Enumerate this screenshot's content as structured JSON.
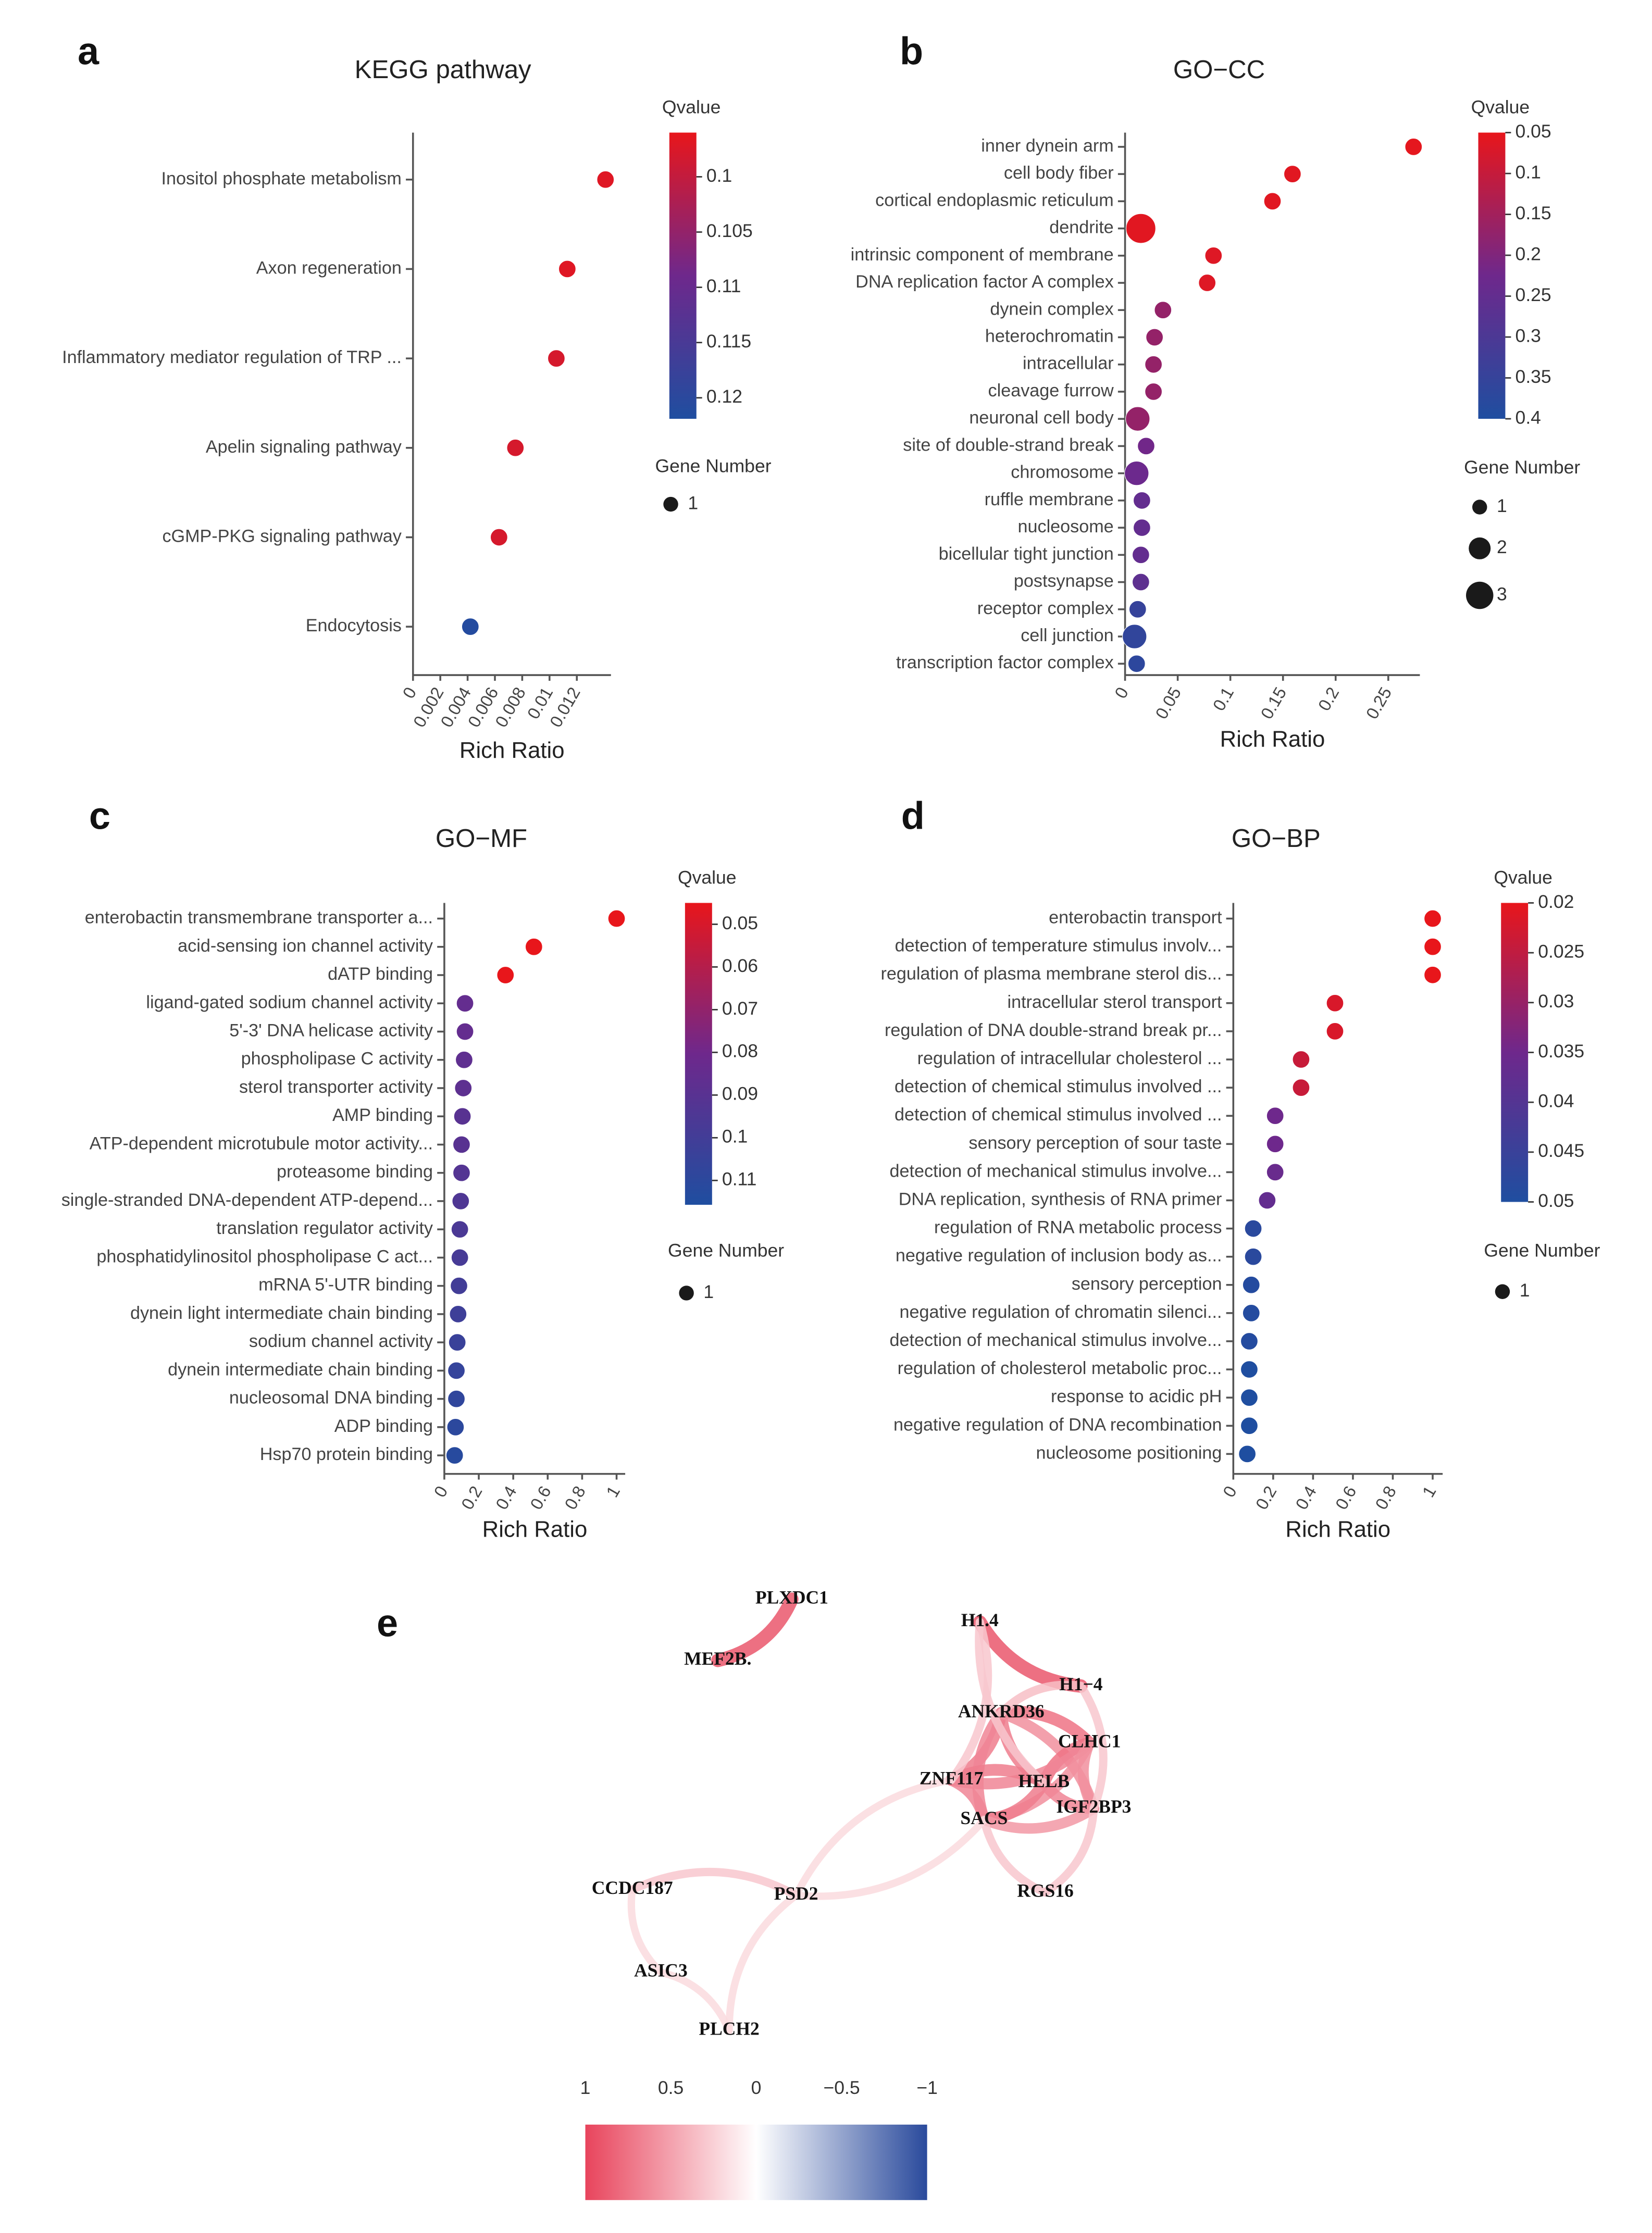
{
  "chart_data": [
    {
      "panel": "a",
      "type": "bubble",
      "title": "KEGG pathway",
      "xlabel": "Rich Ratio",
      "categories": [
        "Inositol phosphate metabolism",
        "Axon regeneration",
        "Inflammatory mediator regulation of TRP ...",
        "Apelin signaling pathway",
        "cGMP-PKG signaling pathway",
        "Endocytosis"
      ],
      "values": [
        0.0141,
        0.0113,
        0.0105,
        0.0075,
        0.0063,
        0.0042
      ],
      "qvalues": [
        0.097,
        0.097,
        0.098,
        0.098,
        0.098,
        0.121
      ],
      "gene_numbers": [
        1,
        1,
        1,
        1,
        1,
        1
      ],
      "xlim": [
        0,
        0.0145
      ],
      "xticks": [
        0,
        0.002,
        0.004,
        0.006,
        0.008,
        0.01,
        0.012
      ],
      "colorbar": {
        "title": "Qvalue",
        "lim": [
          0.096,
          0.1219
        ],
        "ticks": [
          0.1,
          0.105,
          0.11,
          0.115,
          0.12
        ],
        "colors": [
          "#e8161b",
          "#6e288c",
          "#1f4ea0"
        ]
      },
      "size_legend": {
        "title": "Gene Number",
        "values": [
          1
        ]
      }
    },
    {
      "panel": "b",
      "type": "bubble",
      "title": "GO−CC",
      "xlabel": "Rich Ratio",
      "categories": [
        "inner dynein arm",
        "cell body fiber",
        "cortical endoplasmic reticulum",
        "dendrite",
        "intrinsic component of membrane",
        "DNA replication factor A complex",
        "dynein complex",
        "heterochromatin",
        "intracellular",
        "cleavage furrow",
        "neuronal cell body",
        "site of double-strand break",
        "chromosome",
        "ruffle membrane",
        "nucleosome",
        "bicellular tight junction",
        "postsynapse",
        "receptor complex",
        "cell junction",
        "transcription factor complex"
      ],
      "values": [
        0.274,
        0.159,
        0.14,
        0.015,
        0.084,
        0.078,
        0.036,
        0.028,
        0.027,
        0.027,
        0.012,
        0.02,
        0.011,
        0.016,
        0.016,
        0.015,
        0.015,
        0.012,
        0.009,
        0.011
      ],
      "qvalues": [
        0.055,
        0.06,
        0.06,
        0.06,
        0.065,
        0.065,
        0.17,
        0.17,
        0.17,
        0.17,
        0.17,
        0.22,
        0.23,
        0.25,
        0.25,
        0.25,
        0.26,
        0.35,
        0.36,
        0.37
      ],
      "gene_numbers": [
        1,
        1,
        1,
        3,
        1,
        1,
        1,
        1,
        1,
        1,
        2,
        1,
        2,
        1,
        1,
        1,
        1,
        1,
        2,
        1
      ],
      "xlim": [
        0,
        0.28
      ],
      "xticks": [
        0,
        0.05,
        0.1,
        0.15,
        0.2,
        0.25
      ],
      "colorbar": {
        "title": "Qvalue",
        "lim": [
          0.05,
          0.4
        ],
        "ticks": [
          0.05,
          0.1,
          0.15,
          0.2,
          0.25,
          0.3,
          0.35,
          0.4
        ],
        "colors": [
          "#e8161b",
          "#6e288c",
          "#1f4ea0"
        ]
      },
      "size_legend": {
        "title": "Gene Number",
        "values": [
          1,
          2,
          3
        ]
      }
    },
    {
      "panel": "c",
      "type": "bubble",
      "title": "GO−MF",
      "xlabel": "Rich Ratio",
      "categories": [
        "enterobactin transmembrane transporter a...",
        "acid-sensing ion channel activity",
        "dATP binding",
        "ligand-gated sodium channel activity",
        "5'-3' DNA helicase activity",
        "phospholipase C activity",
        "sterol transporter activity",
        "AMP binding",
        "ATP-dependent microtubule motor activity...",
        "proteasome binding",
        "single-stranded DNA-dependent ATP-depend...",
        "translation regulator activity",
        "phosphatidylinositol phospholipase C act...",
        "mRNA 5'-UTR binding",
        "dynein light intermediate chain binding",
        "sodium channel activity",
        "dynein intermediate chain binding",
        "nucleosomal DNA binding",
        "ADP binding",
        "Hsp70 protein binding"
      ],
      "values": [
        1,
        0.52,
        0.355,
        0.12,
        0.12,
        0.115,
        0.11,
        0.105,
        0.1,
        0.1,
        0.095,
        0.09,
        0.09,
        0.085,
        0.08,
        0.075,
        0.07,
        0.07,
        0.065,
        0.06
      ],
      "qvalues": [
        0.045,
        0.045,
        0.045,
        0.085,
        0.085,
        0.087,
        0.088,
        0.09,
        0.09,
        0.092,
        0.094,
        0.096,
        0.098,
        0.1,
        0.102,
        0.104,
        0.106,
        0.108,
        0.11,
        0.112
      ],
      "gene_numbers": [
        1,
        1,
        1,
        1,
        1,
        1,
        1,
        1,
        1,
        1,
        1,
        1,
        1,
        1,
        1,
        1,
        1,
        1,
        1,
        1
      ],
      "xlim": [
        0,
        1.05
      ],
      "xticks": [
        0,
        0.2,
        0.4,
        0.6,
        0.8,
        1
      ],
      "colorbar": {
        "title": "Qvalue",
        "lim": [
          0.045,
          0.1157
        ],
        "ticks": [
          0.05,
          0.06,
          0.07,
          0.08,
          0.09,
          0.1,
          0.11
        ],
        "colors": [
          "#e8161b",
          "#6e288c",
          "#1f4ea0"
        ]
      },
      "size_legend": {
        "title": "Gene Number",
        "values": [
          1
        ]
      }
    },
    {
      "panel": "d",
      "type": "bubble",
      "title": "GO−BP",
      "xlabel": "Rich Ratio",
      "categories": [
        "enterobactin transport",
        "detection of temperature stimulus involv...",
        "regulation of plasma membrane sterol dis...",
        "intracellular sterol transport",
        "regulation of DNA double-strand break pr...",
        "regulation of intracellular cholesterol ...",
        "detection of chemical stimulus involved ...",
        "detection of chemical stimulus involved ...",
        "sensory perception of sour taste",
        "detection of mechanical stimulus involve...",
        "DNA replication, synthesis of RNA primer",
        "regulation of RNA metabolic process",
        "negative regulation of inclusion body as...",
        "sensory perception",
        "negative regulation of chromatin silenci...",
        "detection of mechanical stimulus involve...",
        "regulation of cholesterol metabolic proc...",
        "response to acidic pH",
        "negative regulation of DNA recombination",
        "nucleosome positioning"
      ],
      "values": [
        1,
        1,
        1,
        0.51,
        0.51,
        0.34,
        0.34,
        0.21,
        0.21,
        0.21,
        0.17,
        0.1,
        0.1,
        0.09,
        0.09,
        0.08,
        0.08,
        0.08,
        0.08,
        0.07
      ],
      "qvalues": [
        0.02,
        0.02,
        0.02,
        0.022,
        0.022,
        0.024,
        0.024,
        0.035,
        0.035,
        0.036,
        0.037,
        0.048,
        0.048,
        0.049,
        0.049,
        0.049,
        0.05,
        0.05,
        0.05,
        0.05
      ],
      "gene_numbers": [
        1,
        1,
        1,
        1,
        1,
        1,
        1,
        1,
        1,
        1,
        1,
        1,
        1,
        1,
        1,
        1,
        1,
        1,
        1,
        1
      ],
      "xlim": [
        0,
        1.05
      ],
      "xticks": [
        0,
        0.2,
        0.4,
        0.6,
        0.8,
        1
      ],
      "colorbar": {
        "title": "Qvalue",
        "lim": [
          0.02,
          0.05
        ],
        "ticks": [
          0.02,
          0.025,
          0.03,
          0.035,
          0.04,
          0.045,
          0.05
        ],
        "colors": [
          "#e8161b",
          "#6e288c",
          "#1f4ea0"
        ]
      },
      "size_legend": {
        "title": "Gene Number",
        "values": [
          1
        ]
      }
    }
  ],
  "network": {
    "panel": "e",
    "nodes": [
      "PLXDC1",
      "MEF2B.",
      "H1.4",
      "H1−4",
      "ANKRD36",
      "CLHC1",
      "ZNF117",
      "HELB",
      "IGF2BP3",
      "SACS",
      "RGS16",
      "CCDC187",
      "PSD2",
      "ASIC3",
      "PLCH2"
    ],
    "edges": [
      {
        "source": "PLXDC1",
        "target": "MEF2B.",
        "weight": 0.9
      },
      {
        "source": "H1.4",
        "target": "H1−4",
        "weight": 0.9
      },
      {
        "source": "ANKRD36",
        "target": "CLHC1",
        "weight": 0.75
      },
      {
        "source": "ANKRD36",
        "target": "HELB",
        "weight": 0.7
      },
      {
        "source": "ANKRD36",
        "target": "ZNF117",
        "weight": 0.7
      },
      {
        "source": "ANKRD36",
        "target": "SACS",
        "weight": 0.65
      },
      {
        "source": "ANKRD36",
        "target": "IGF2BP3",
        "weight": 0.6
      },
      {
        "source": "CLHC1",
        "target": "HELB",
        "weight": 0.75
      },
      {
        "source": "CLHC1",
        "target": "ZNF117",
        "weight": 0.65
      },
      {
        "source": "CLHC1",
        "target": "IGF2BP3",
        "weight": 0.6
      },
      {
        "source": "CLHC1",
        "target": "SACS",
        "weight": 0.6
      },
      {
        "source": "HELB",
        "target": "ZNF117",
        "weight": 0.7
      },
      {
        "source": "HELB",
        "target": "SACS",
        "weight": 0.7
      },
      {
        "source": "HELB",
        "target": "IGF2BP3",
        "weight": 0.65
      },
      {
        "source": "ZNF117",
        "target": "SACS",
        "weight": 0.65
      },
      {
        "source": "SACS",
        "target": "IGF2BP3",
        "weight": 0.55
      },
      {
        "source": "H1.4",
        "target": "ZNF117",
        "weight": 0.3
      },
      {
        "source": "H1.4",
        "target": "HELB",
        "weight": 0.3
      },
      {
        "source": "H1−4",
        "target": "IGF2BP3",
        "weight": 0.3
      },
      {
        "source": "H1−4",
        "target": "ANKRD36",
        "weight": 0.35
      },
      {
        "source": "RGS16",
        "target": "SACS",
        "weight": 0.3
      },
      {
        "source": "RGS16",
        "target": "IGF2BP3",
        "weight": 0.3
      },
      {
        "source": "PSD2",
        "target": "ZNF117",
        "weight": 0.2
      },
      {
        "source": "PSD2",
        "target": "SACS",
        "weight": 0.2
      },
      {
        "source": "CCDC187",
        "target": "PSD2",
        "weight": 0.3
      },
      {
        "source": "CCDC187",
        "target": "ASIC3",
        "weight": 0.2
      },
      {
        "source": "ASIC3",
        "target": "PLCH2",
        "weight": 0.2
      },
      {
        "source": "PSD2",
        "target": "PLCH2",
        "weight": 0.2
      }
    ],
    "colorbar": {
      "ticks": [
        1,
        0.5,
        0,
        {
          "value": -0.5,
          "label": "−0.5"
        },
        {
          "value": -1,
          "label": "−1"
        }
      ],
      "colors": [
        "#e8445c",
        "#ffffff",
        "#2a4a9c"
      ]
    }
  }
}
